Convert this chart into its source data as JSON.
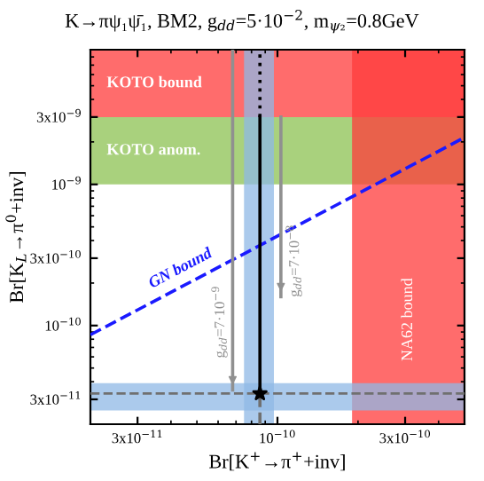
{
  "chart_data": {
    "type": "line",
    "title": "K→πψ₁ψ̄₁, BM2, g$_{dd}$=5·10$^{−2}$, m$_{ψ₂}$=0.8GeV",
    "xlabel": "Br[K$^{+}$→π$^{+}$+inv]",
    "ylabel": "Br[K$_{L}$→π$^{0}$+inv]",
    "log": "xy",
    "xlim": [
      2e-11,
      5e-10
    ],
    "ylim": [
      2e-11,
      9e-09
    ],
    "xticks": [
      {
        "value": 3e-11,
        "label": "3x10$^{−11}$"
      },
      {
        "value": 1e-10,
        "label": "10$^{−10}$"
      },
      {
        "value": 3e-10,
        "label": "3x10$^{−10}$"
      }
    ],
    "yticks": [
      {
        "value": 3e-11,
        "label": "3x10$^{−11}$"
      },
      {
        "value": 1e-10,
        "label": "10$^{−10}$"
      },
      {
        "value": 3e-10,
        "label": "3x10$^{−10}$"
      },
      {
        "value": 1e-09,
        "label": "10$^{−9}$"
      },
      {
        "value": 3e-09,
        "label": "3x10$^{−9}$"
      }
    ],
    "grid": false,
    "bands": [
      {
        "axis": "y",
        "from": 1e-09,
        "to": 3e-09,
        "label": "KOTO anom.",
        "color": "#8cc152"
      },
      {
        "axis": "y",
        "from": 3e-09,
        "to": 9e-09,
        "label": "KOTO bound",
        "color": "#ff3b3b"
      },
      {
        "axis": "x",
        "from": 1.9e-10,
        "to": 5e-10,
        "label": "NA62 bound",
        "color": "#ff3b3b"
      },
      {
        "axis": "x",
        "from": 7.5e-11,
        "to": 9.7e-11,
        "color": "#8fb8e6"
      },
      {
        "axis": "y",
        "from": 2.5e-11,
        "to": 3.9e-11,
        "color": "#8fb8e6"
      }
    ],
    "ref_lines": [
      {
        "axis": "y",
        "value": 3.3e-11,
        "color": "#707070",
        "line_style": "dashed"
      }
    ],
    "series": [
      {
        "name": "GN bound",
        "color": "#1a1aff",
        "line_style": "dashed",
        "x": [
          2e-11,
          5e-10
        ],
        "values": [
          8.6e-11,
          2.15e-09
        ]
      },
      {
        "color": "#000000",
        "line_style": "solid",
        "x": [
          8.6e-11,
          8.6e-11
        ],
        "values": [
          3.3e-11,
          3e-09
        ]
      },
      {
        "color": "#000000",
        "line_style": "dotted",
        "x": [
          8.6e-11,
          8.6e-11
        ],
        "values": [
          3e-09,
          9e-09
        ]
      },
      {
        "color": "#707070",
        "line_style": "dashed",
        "x": [
          8.6e-11,
          8.6e-11
        ],
        "values": [
          2e-11,
          3.3e-11
        ]
      },
      {
        "name": "g$_{dd}$=7·10$^{−9}$",
        "color": "#909090",
        "line_style": "solid",
        "x": [
          6.8e-11,
          6.8e-11
        ],
        "values": [
          9e-09,
          3.5e-11
        ]
      },
      {
        "name": "g$_{dd}$=7·10$^{−8}$",
        "color": "#909090",
        "line_style": "solid",
        "x": [
          1.03e-10,
          1.03e-10
        ],
        "values": [
          3e-09,
          1.6e-10
        ]
      },
      {
        "type": "scatter",
        "marker": "star",
        "color": "#000000",
        "x": [
          8.6e-11
        ],
        "values": [
          3.3e-11
        ]
      }
    ]
  }
}
